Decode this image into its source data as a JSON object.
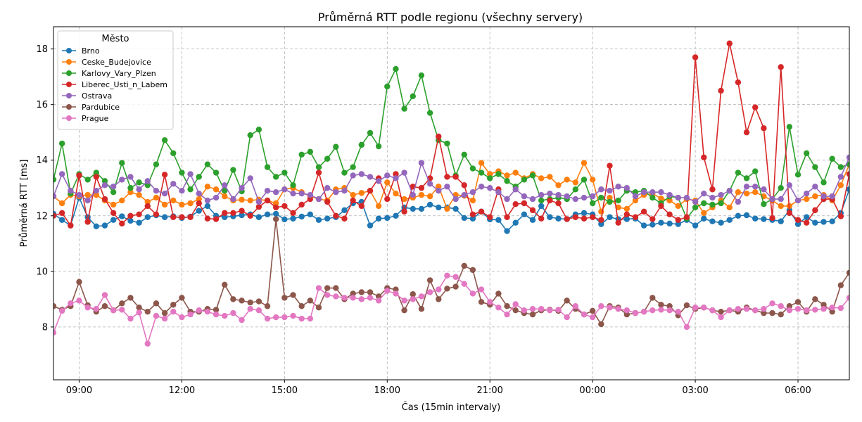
{
  "chart_data": {
    "type": "line",
    "title": "Průměrná RTT podle regionu (všechny servery)",
    "xlabel": "Čas (15min intervaly)",
    "ylabel": "Průměrná RTT [ms]",
    "x_ticks": [
      "09:00",
      "12:00",
      "15:00",
      "18:00",
      "21:00",
      "00:00",
      "03:00",
      "06:00"
    ],
    "y_ticks": [
      "8",
      "10",
      "12",
      "14",
      "16",
      "18"
    ],
    "ylim": [
      6.1,
      18.8
    ],
    "grid": true,
    "legend_title": "Město",
    "legend_position": "top-left",
    "x_interval_minutes": 15,
    "series": [
      {
        "name": "Brno",
        "color": "#1f77b4",
        "values": [
          12.07,
          11.85,
          11.65,
          12.65,
          11.95,
          11.62,
          11.65,
          11.85,
          11.98,
          11.82,
          11.75,
          11.95,
          12.02,
          11.95,
          11.98,
          11.92,
          11.97,
          12.18,
          12.35,
          12.0,
          11.95,
          11.98,
          12.02,
          12.05,
          11.95,
          12.05,
          12.07,
          11.87,
          11.9,
          11.97,
          12.05,
          11.85,
          11.9,
          11.95,
          12.2,
          12.45,
          12.5,
          11.65,
          11.9,
          11.92,
          12.0,
          12.3,
          12.25,
          12.25,
          12.4,
          12.3,
          12.3,
          12.25,
          11.92,
          11.9,
          12.15,
          11.87,
          11.85,
          11.45,
          11.75,
          12.05,
          11.85,
          12.35,
          11.95,
          11.9,
          11.88,
          12.05,
          12.1,
          12.05,
          11.7,
          11.95,
          11.88,
          11.88,
          11.9,
          11.65,
          11.68,
          11.75,
          11.72,
          11.7,
          11.85,
          11.65,
          11.9,
          11.8,
          11.75,
          11.85,
          12.0,
          12.02,
          11.9,
          11.88,
          11.85,
          11.8,
          12.2,
          11.7,
          11.95,
          11.75,
          11.78,
          11.8,
          12.1,
          12.95
        ]
      },
      {
        "name": "Ceske_Budejovice",
        "color": "#ff7f0e",
        "values": [
          12.7,
          12.45,
          12.75,
          12.7,
          12.75,
          12.75,
          12.55,
          12.4,
          12.55,
          12.85,
          12.75,
          12.5,
          12.65,
          12.4,
          12.55,
          12.4,
          12.45,
          12.6,
          13.05,
          12.95,
          12.7,
          12.55,
          12.58,
          12.55,
          12.58,
          12.55,
          12.45,
          12.95,
          13.0,
          12.85,
          12.7,
          12.6,
          12.55,
          12.95,
          13.0,
          12.75,
          12.82,
          12.9,
          12.35,
          13.2,
          12.8,
          12.6,
          12.65,
          12.75,
          12.7,
          13.05,
          12.25,
          12.75,
          12.72,
          12.55,
          13.9,
          13.5,
          13.6,
          13.45,
          13.55,
          13.35,
          13.5,
          13.35,
          13.4,
          13.1,
          13.3,
          13.2,
          13.9,
          13.3,
          12.15,
          12.65,
          12.3,
          12.25,
          12.55,
          12.75,
          12.8,
          12.62,
          12.55,
          12.35,
          12.6,
          12.55,
          12.1,
          12.3,
          12.55,
          12.3,
          12.85,
          12.8,
          12.85,
          12.7,
          12.55,
          12.35,
          12.35,
          12.55,
          12.6,
          12.7,
          12.75,
          12.55,
          13.1,
          13.85
        ]
      },
      {
        "name": "Karlovy_Vary_Plzen",
        "color": "#2ca02c",
        "values": [
          13.3,
          14.6,
          12.8,
          13.5,
          13.3,
          13.55,
          13.25,
          12.85,
          13.9,
          13.0,
          13.2,
          13.1,
          13.85,
          14.72,
          14.25,
          13.55,
          12.95,
          13.4,
          13.85,
          13.55,
          12.9,
          13.65,
          12.88,
          14.9,
          15.1,
          13.75,
          13.4,
          13.55,
          13.1,
          14.2,
          14.3,
          13.75,
          14.05,
          14.48,
          13.55,
          13.75,
          14.55,
          14.98,
          14.5,
          16.65,
          17.28,
          15.85,
          16.3,
          17.05,
          15.7,
          14.72,
          14.6,
          13.45,
          14.2,
          13.7,
          13.55,
          13.35,
          13.5,
          13.25,
          13.05,
          13.3,
          13.45,
          12.55,
          12.6,
          12.65,
          12.6,
          12.95,
          13.3,
          12.45,
          12.65,
          12.5,
          12.55,
          12.9,
          12.85,
          12.9,
          12.65,
          12.45,
          12.7,
          12.65,
          11.9,
          12.3,
          12.45,
          12.4,
          12.45,
          12.9,
          13.55,
          13.35,
          13.6,
          12.42,
          12.6,
          13.0,
          15.2,
          13.48,
          14.25,
          13.75,
          13.2,
          14.05,
          13.75,
          13.85
        ]
      },
      {
        "name": "Liberec_Usti_n_Labem",
        "color": "#d62728",
        "values": [
          12.0,
          12.1,
          11.65,
          13.45,
          11.78,
          13.4,
          12.6,
          12.1,
          11.72,
          12.0,
          12.05,
          12.35,
          12.05,
          13.48,
          11.95,
          11.95,
          11.95,
          12.45,
          11.9,
          11.88,
          12.1,
          12.1,
          12.18,
          12.0,
          12.32,
          12.55,
          12.3,
          12.35,
          12.1,
          12.4,
          12.6,
          13.55,
          12.5,
          12.0,
          11.9,
          12.55,
          12.35,
          12.9,
          13.35,
          12.6,
          13.5,
          12.15,
          13.05,
          13.0,
          13.35,
          14.85,
          13.4,
          13.4,
          13.1,
          12.05,
          12.15,
          11.95,
          12.95,
          11.95,
          12.42,
          12.45,
          12.2,
          11.9,
          12.55,
          12.45,
          11.88,
          11.95,
          11.9,
          11.95,
          11.85,
          13.8,
          11.75,
          12.05,
          11.95,
          12.15,
          11.88,
          12.35,
          12.05,
          11.85,
          11.95,
          17.7,
          14.1,
          12.95,
          16.5,
          18.2,
          16.8,
          15.0,
          15.9,
          15.15,
          11.92,
          17.35,
          12.1,
          11.85,
          11.75,
          12.2,
          12.6,
          12.6,
          11.98,
          13.5
        ]
      },
      {
        "name": "Ostrava",
        "color": "#9467bd",
        "values": [
          12.7,
          13.5,
          12.9,
          12.75,
          12.55,
          12.9,
          13.1,
          13.05,
          13.3,
          13.4,
          12.95,
          13.25,
          12.9,
          12.8,
          13.15,
          12.9,
          13.5,
          12.8,
          12.55,
          12.65,
          13.1,
          12.6,
          13.0,
          13.35,
          12.5,
          12.9,
          12.85,
          12.95,
          12.8,
          12.8,
          12.75,
          12.6,
          13.0,
          12.85,
          12.9,
          13.45,
          13.5,
          13.4,
          13.25,
          13.45,
          13.35,
          13.55,
          12.75,
          13.9,
          13.15,
          12.9,
          13.05,
          12.6,
          12.75,
          12.85,
          13.05,
          13.0,
          12.85,
          12.6,
          12.95,
          12.7,
          12.6,
          12.75,
          12.8,
          12.75,
          12.7,
          12.6,
          12.65,
          12.7,
          12.95,
          12.9,
          13.05,
          13.0,
          12.7,
          12.85,
          12.85,
          12.85,
          12.75,
          12.65,
          12.65,
          12.5,
          12.8,
          12.65,
          12.75,
          12.9,
          12.5,
          13.05,
          13.05,
          12.95,
          12.6,
          12.6,
          13.1,
          12.55,
          12.8,
          13.05,
          12.7,
          12.7,
          13.4,
          14.1
        ]
      },
      {
        "name": "Pardubice",
        "color": "#8c564b",
        "values": [
          8.75,
          8.62,
          8.75,
          9.62,
          8.78,
          8.55,
          8.75,
          8.6,
          8.85,
          9.05,
          8.7,
          8.55,
          8.85,
          8.5,
          8.8,
          9.05,
          8.55,
          8.55,
          8.65,
          8.62,
          9.52,
          9.0,
          8.95,
          8.88,
          8.92,
          8.75,
          11.88,
          9.05,
          9.15,
          8.75,
          8.95,
          8.7,
          9.4,
          9.4,
          9.0,
          9.2,
          9.25,
          9.25,
          9.1,
          9.4,
          9.35,
          8.6,
          9.18,
          8.65,
          9.68,
          9.0,
          9.38,
          9.45,
          10.2,
          10.05,
          8.9,
          8.8,
          9.2,
          8.75,
          8.6,
          8.5,
          8.45,
          8.6,
          8.62,
          8.58,
          8.95,
          8.65,
          8.45,
          8.58,
          8.1,
          8.75,
          8.7,
          8.45,
          8.5,
          8.55,
          9.05,
          8.8,
          8.75,
          8.42,
          8.78,
          8.65,
          8.7,
          8.6,
          8.55,
          8.6,
          8.55,
          8.7,
          8.6,
          8.5,
          8.5,
          8.45,
          8.75,
          8.9,
          8.55,
          9.0,
          8.8,
          8.55,
          9.5,
          9.95
        ]
      },
      {
        "name": "Prague",
        "color": "#e377c2",
        "values": [
          7.8,
          8.58,
          8.85,
          8.95,
          8.7,
          8.65,
          9.15,
          8.6,
          8.62,
          8.3,
          8.52,
          7.4,
          8.4,
          8.3,
          8.55,
          8.35,
          8.45,
          8.6,
          8.55,
          8.45,
          8.4,
          8.5,
          8.25,
          8.65,
          8.6,
          8.3,
          8.35,
          8.35,
          8.4,
          8.3,
          8.3,
          9.4,
          9.15,
          9.1,
          9.05,
          9.05,
          9.0,
          9.05,
          8.95,
          9.3,
          9.2,
          8.95,
          9.0,
          9.1,
          9.25,
          9.35,
          9.85,
          9.8,
          9.55,
          9.2,
          9.35,
          8.9,
          8.7,
          8.45,
          8.82,
          8.6,
          8.65,
          8.65,
          8.6,
          8.62,
          8.35,
          8.75,
          8.45,
          8.35,
          8.75,
          8.7,
          8.65,
          8.6,
          8.5,
          8.55,
          8.6,
          8.62,
          8.6,
          8.55,
          8.0,
          8.7,
          8.7,
          8.6,
          8.35,
          8.6,
          8.65,
          8.65,
          8.6,
          8.65,
          8.85,
          8.75,
          8.6,
          8.65,
          8.6,
          8.62,
          8.65,
          8.7,
          8.68,
          9.05
        ]
      }
    ]
  }
}
